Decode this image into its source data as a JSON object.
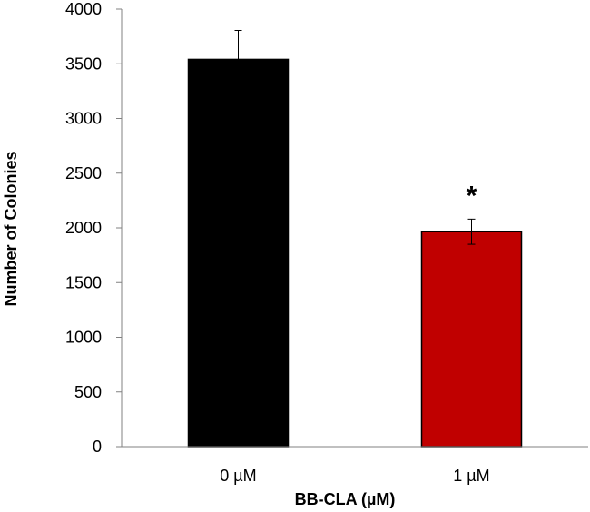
{
  "chart_data": {
    "type": "bar",
    "categories": [
      "0 µM",
      "1 µM"
    ],
    "values": [
      3540,
      1965
    ],
    "errors": [
      265,
      115
    ],
    "colors": [
      "#000000",
      "#c00000"
    ],
    "annotations": [
      "",
      "*"
    ],
    "xlabel": "BB-CLA (µM)",
    "ylabel": "Number of Colonies",
    "ylim": [
      0,
      4000
    ],
    "yticks": [
      0,
      500,
      1000,
      1500,
      2000,
      2500,
      3000,
      3500,
      4000
    ],
    "grid": false,
    "legend": "none"
  }
}
